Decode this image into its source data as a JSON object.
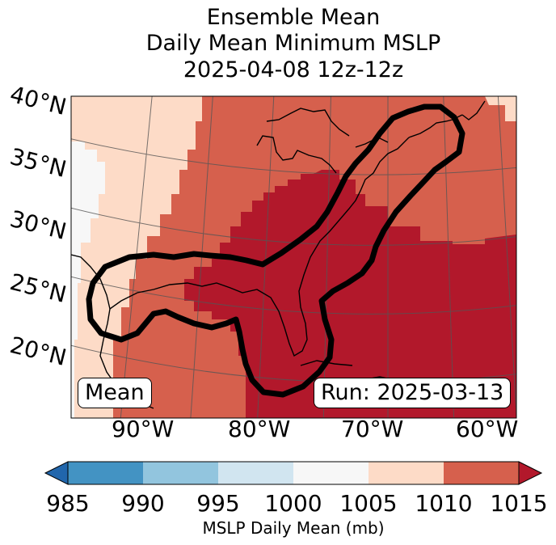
{
  "title": {
    "line1": "Ensemble Mean",
    "line2": "Daily Mean Minimum MSLP",
    "line3": "2025-04-08 12z-12z"
  },
  "map": {
    "lat_labels": [
      "40°N",
      "35°N",
      "30°N",
      "25°N",
      "20°N"
    ],
    "lon_labels": [
      "90°W",
      "80°W",
      "70°W",
      "60°W"
    ],
    "mean_badge": "Mean",
    "run_badge": "Run: 2025-03-13"
  },
  "colorbar": {
    "ticks": [
      "985",
      "990",
      "995",
      "1000",
      "1005",
      "1010",
      "1015"
    ],
    "label": "MSLP Daily Mean (mb)",
    "colors": {
      "below_985": "#2166ac",
      "985_990": "#4393c3",
      "990_995": "#92c5de",
      "995_1000": "#d1e5f0",
      "1000_1005": "#f7f7f7",
      "1005_1010": "#fddbc7",
      "1010_1015": "#d6604d",
      "above_1015": "#b2182b"
    }
  }
}
